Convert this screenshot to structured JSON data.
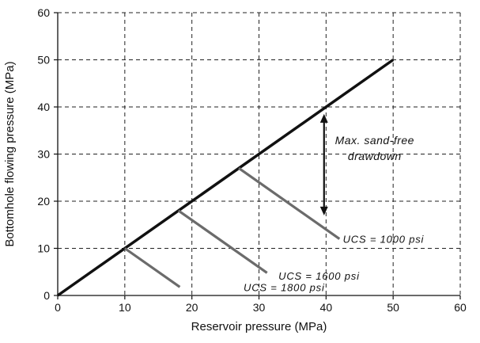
{
  "chart_data": {
    "type": "line",
    "xlabel": "Reservoir pressure (MPa)",
    "ylabel": "Bottomhole flowing pressure (MPa)",
    "xlim": [
      0,
      60
    ],
    "ylim": [
      0,
      60
    ],
    "xticks": [
      0,
      10,
      20,
      30,
      40,
      50,
      60
    ],
    "yticks": [
      0,
      10,
      20,
      30,
      40,
      50,
      60
    ],
    "grid": true,
    "grid_style": "dashed",
    "series": [
      {
        "name": "",
        "color": "#111111",
        "x": [
          0,
          50
        ],
        "y": [
          0,
          50
        ]
      },
      {
        "name": "UCS = 1800 psi",
        "color": "#6b6b6b",
        "x": [
          10,
          18.2
        ],
        "y": [
          10,
          1.8
        ]
      },
      {
        "name": "UCS = 1600 psi",
        "color": "#6b6b6b",
        "x": [
          18,
          31.2
        ],
        "y": [
          18,
          4.8
        ]
      },
      {
        "name": "UCS = 1000 psi",
        "color": "#6b6b6b",
        "x": [
          27,
          42
        ],
        "y": [
          27,
          12
        ]
      }
    ],
    "labels": [
      {
        "text": "UCS = 1800 psi",
        "x": 27,
        "y": 1.8
      },
      {
        "text": "UCS = 1600 psi",
        "x": 32.2,
        "y": 4.2
      },
      {
        "text": "UCS = 1000 psi",
        "x": 41.8,
        "y": 12
      }
    ],
    "annotation": {
      "line1": "Max. sand-free",
      "line2": "drawdown",
      "arrow_x": 39.7,
      "arrow_y_from": 38.5,
      "arrow_y_to": 17
    }
  }
}
